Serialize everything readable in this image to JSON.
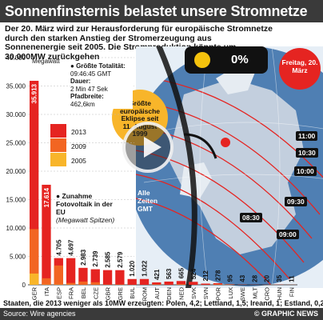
{
  "title": "Sonnenfinsternis belastet unsere Stromnetze",
  "subtitle": "Der 20. März wird zur Herausforderung für europäische Stromnetze durch den starken Anstieg der Stromerzeugung aus Sonnenenergie seit 2005. Die Stromproduktion könnte um 30.000MW zurückgehen",
  "percent": "0%",
  "totality": {
    "heading": "Größte Totalität:",
    "time": "09:46:45 GMT",
    "duration_label": "Dauer:",
    "duration": "2 Min 47 Sek",
    "width_label": "Pfadbreite:",
    "width": "462,6km"
  },
  "eclipse_1999": "Größte europäische Eklipse seit 11. August 1999",
  "date_badge": "Freitag, 20. März",
  "times": [
    "11:00",
    "10:30",
    "10:00",
    "09:30",
    "09:00",
    "08:30"
  ],
  "times_note": "Alle Zeiten GMT",
  "legend": [
    {
      "year": "2013",
      "color": "#e52421"
    },
    {
      "year": "2009",
      "color": "#f26522"
    },
    {
      "year": "2005",
      "color": "#f8b52a"
    }
  ],
  "annotation": {
    "title": "Zunahme Fotovoltaik in der EU",
    "note": "(Megawatt Spitzen)"
  },
  "footnote": "Staaten, die 2013 weniger als 10MW erzeugten: Polen, 4,2; Lettland, 1,5; Ireand, 1; Estland, 0,2",
  "source": "Source: Wire agencies",
  "credit": "© GRAPHIC NEWS",
  "chart_data": {
    "type": "bar",
    "ylabel": "Megawatt",
    "ylim": [
      0,
      40000
    ],
    "yticks": [
      "0",
      "5.000",
      "10.000",
      "15.000",
      "20.000",
      "25.000",
      "30.000",
      "35.000",
      "40.000"
    ],
    "ytick_values": [
      0,
      5000,
      10000,
      15000,
      20000,
      25000,
      30000,
      35000,
      40000
    ],
    "categories": [
      "GER",
      "ITA",
      "ESP",
      "FRA",
      "BEL",
      "CZE",
      "GBR",
      "GRE",
      "BUL",
      "ROM",
      "AUT",
      "DEN",
      "NED",
      "SVK",
      "SVN",
      "POR",
      "LUX",
      "SWE",
      "MLT",
      "CRO",
      "HUN",
      "FIN"
    ],
    "series": [
      {
        "name": "2013",
        "values": [
          35913,
          17614,
          4705,
          4697,
          2983,
          2739,
          2585,
          2579,
          1020,
          1022,
          421,
          563,
          665,
          524,
          212,
          278,
          95,
          43,
          28,
          20,
          35,
          11
        ]
      },
      {
        "name": "2009",
        "values": [
          9800,
          1150,
          3400,
          330,
          570,
          450,
          30,
          55,
          5,
          0,
          50,
          5,
          70,
          0,
          8,
          100,
          27,
          9,
          2,
          0,
          1,
          7
        ]
      },
      {
        "name": "2005",
        "values": [
          1980,
          37,
          37,
          26,
          2,
          1,
          11,
          5,
          0,
          0,
          24,
          3,
          51,
          0,
          0,
          3,
          24,
          4,
          0,
          0,
          0,
          4
        ]
      }
    ],
    "data_labels": [
      "35.913",
      "17.614",
      "4.705",
      "4.697",
      "2.983",
      "2.739",
      "2.585",
      "2.579",
      "1.020",
      "1.022",
      "421",
      "563",
      "665",
      "524",
      "212",
      "278",
      "95",
      "43",
      "28",
      "20",
      "35",
      "11"
    ]
  }
}
